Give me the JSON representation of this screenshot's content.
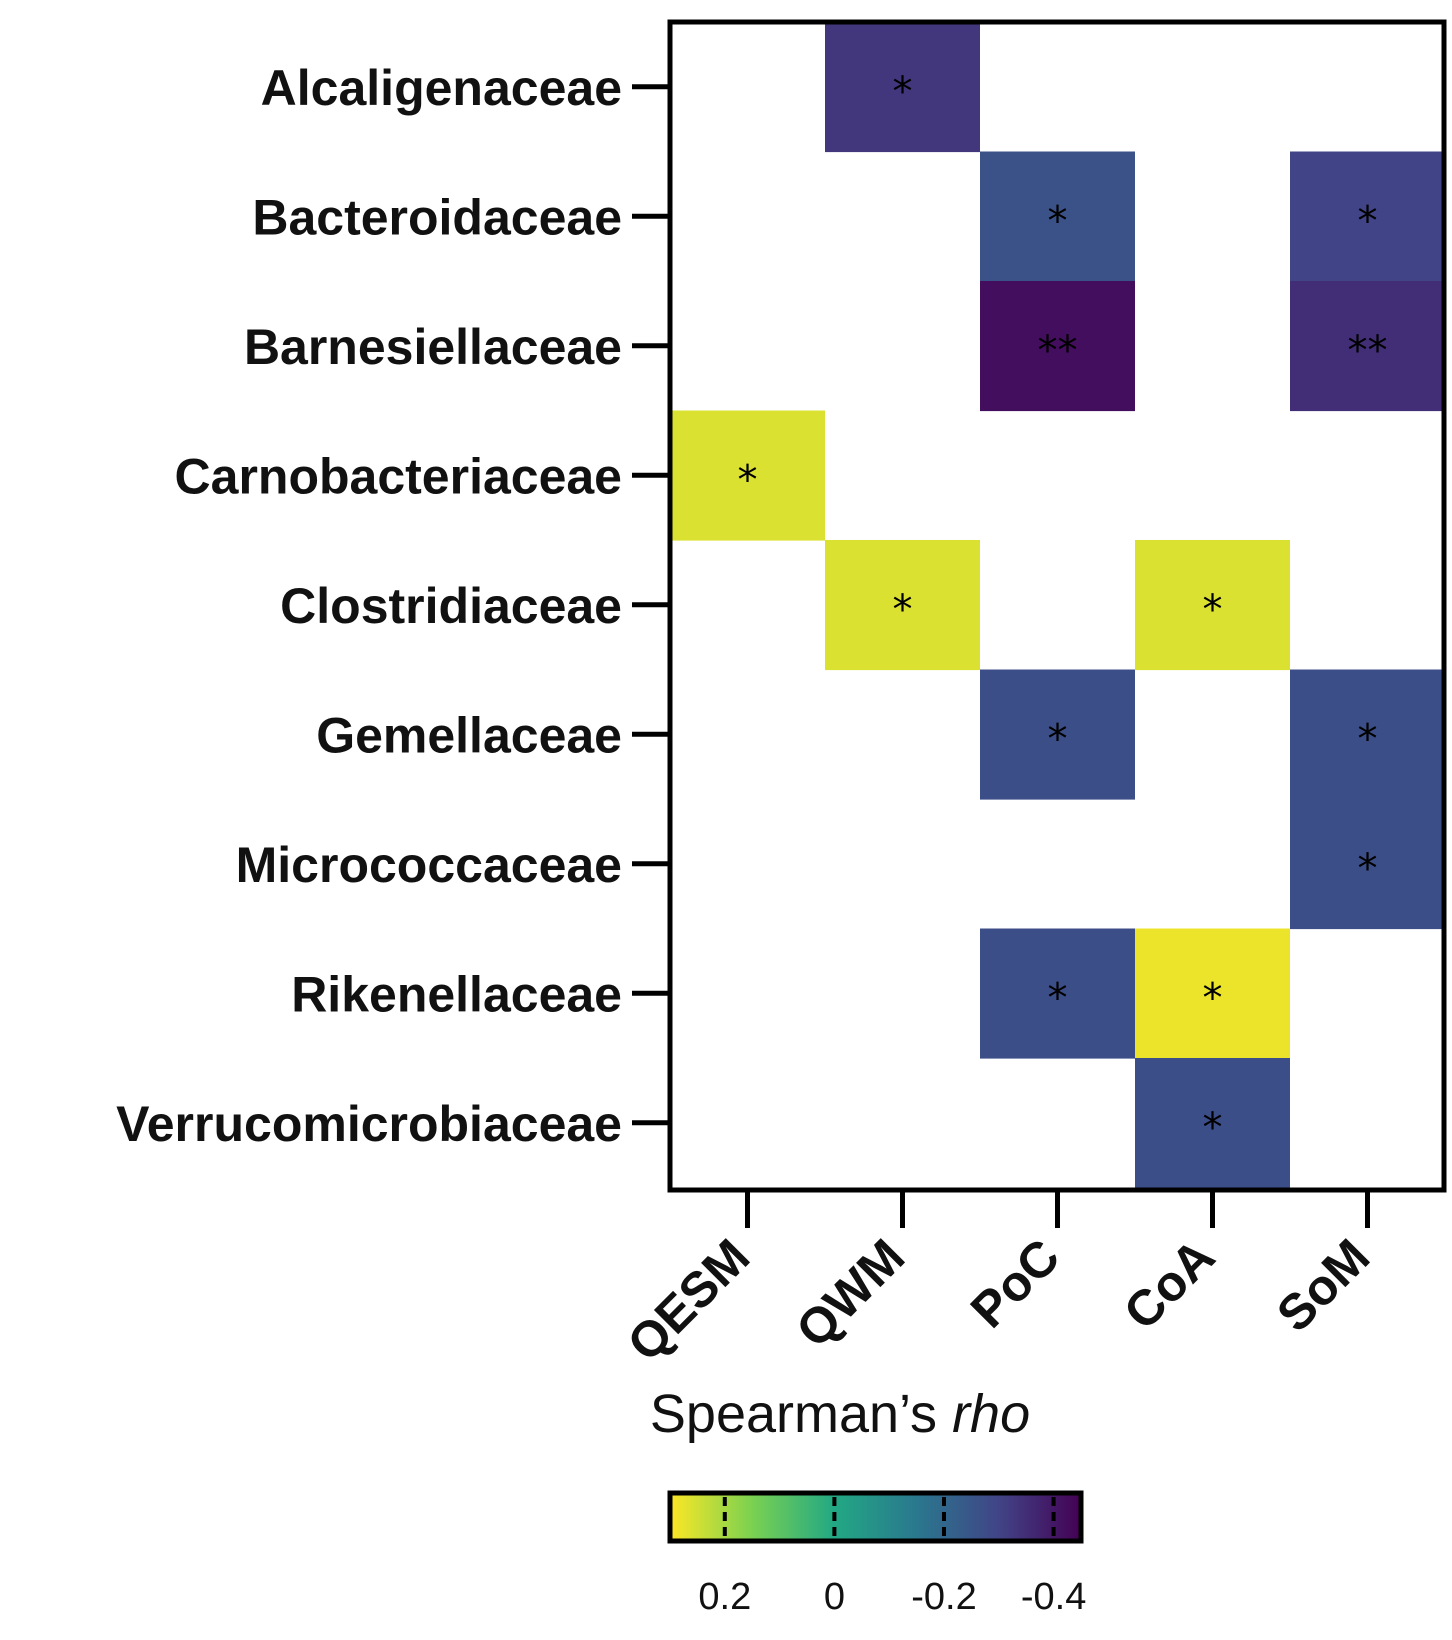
{
  "chart_data": {
    "type": "heatmap",
    "rows": [
      "Alcaligenaceae",
      "Bacteroidaceae",
      "Barnesiellaceae",
      "Carnobacteriaceae",
      "Clostridiaceae",
      "Gemellaceae",
      "Micrococcaceae",
      "Rikenellaceae",
      "Verrucomicrobiaceae"
    ],
    "columns": [
      "QESM",
      "QWM",
      "PoC",
      "CoA",
      "SoM"
    ],
    "cells": [
      {
        "row": "Alcaligenaceae",
        "col": "QWM",
        "rho": -0.33,
        "sig": "*"
      },
      {
        "row": "Bacteroidaceae",
        "col": "PoC",
        "rho": -0.26,
        "sig": "*"
      },
      {
        "row": "Bacteroidaceae",
        "col": "SoM",
        "rho": -0.3,
        "sig": "*"
      },
      {
        "row": "Barnesiellaceae",
        "col": "PoC",
        "rho": -0.42,
        "sig": "**"
      },
      {
        "row": "Barnesiellaceae",
        "col": "SoM",
        "rho": -0.35,
        "sig": "**"
      },
      {
        "row": "Carnobacteriaceae",
        "col": "QESM",
        "rho": 0.26,
        "sig": "*"
      },
      {
        "row": "Clostridiaceae",
        "col": "QWM",
        "rho": 0.26,
        "sig": "*"
      },
      {
        "row": "Clostridiaceae",
        "col": "CoA",
        "rho": 0.26,
        "sig": "*"
      },
      {
        "row": "Gemellaceae",
        "col": "PoC",
        "rho": -0.27,
        "sig": "*"
      },
      {
        "row": "Gemellaceae",
        "col": "SoM",
        "rho": -0.27,
        "sig": "*"
      },
      {
        "row": "Micrococcaceae",
        "col": "SoM",
        "rho": -0.27,
        "sig": "*"
      },
      {
        "row": "Rikenellaceae",
        "col": "PoC",
        "rho": -0.27,
        "sig": "*"
      },
      {
        "row": "Rikenellaceae",
        "col": "CoA",
        "rho": 0.28,
        "sig": "*"
      },
      {
        "row": "Verrucomicrobiaceae",
        "col": "CoA",
        "rho": -0.27,
        "sig": "*"
      }
    ],
    "colorbar": {
      "title": "Spearman’s ",
      "title_italic": "rho",
      "range": [
        0.3,
        -0.45
      ],
      "ticks": [
        0.2,
        0,
        -0.2,
        -0.4
      ],
      "tick_labels": [
        "0.2",
        "0",
        "-0.2",
        "-0.4"
      ],
      "colormap": "viridis (reversed)"
    }
  }
}
